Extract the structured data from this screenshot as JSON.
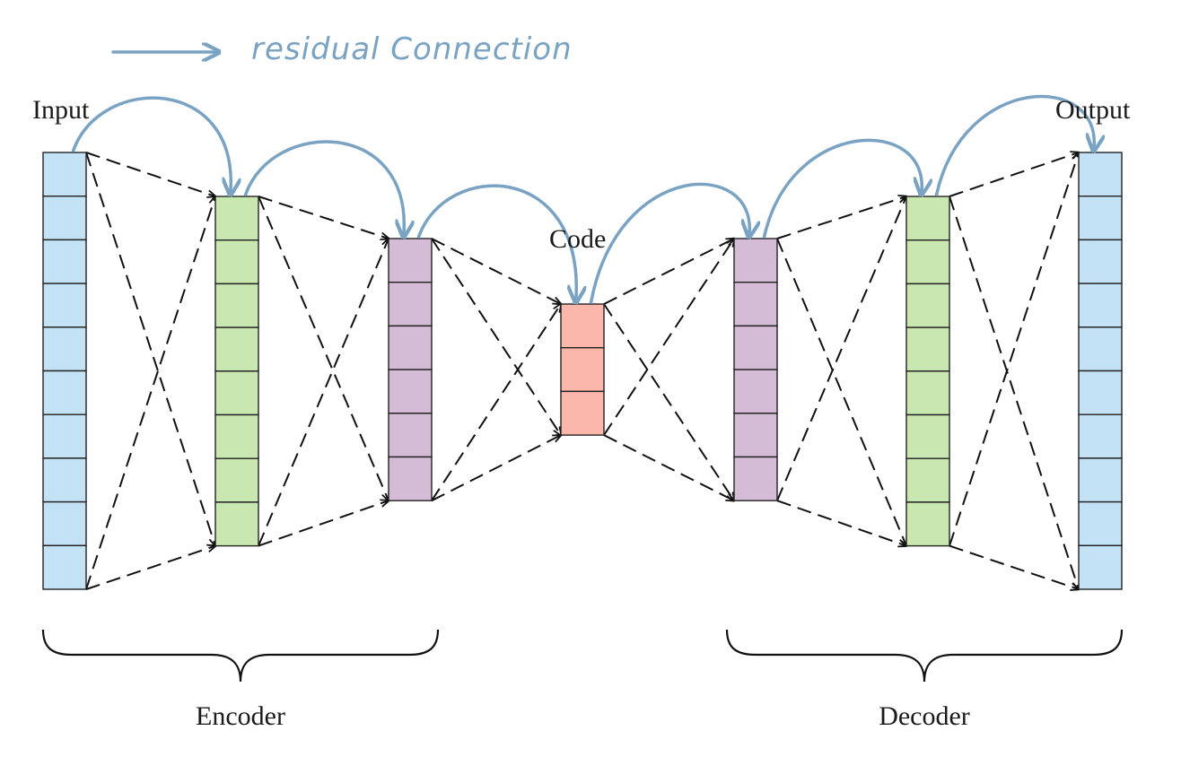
{
  "legend": {
    "text": "residual Connection",
    "color": "#7aa3c3"
  },
  "labels": {
    "input": "Input",
    "output": "Output",
    "code": "Code",
    "encoder": "Encoder",
    "decoder": "Decoder"
  },
  "layers": [
    {
      "name": "input",
      "cells": 10,
      "color": "#c4e2f6"
    },
    {
      "name": "encoder-hidden-1",
      "cells": 8,
      "color": "#c9e7b0"
    },
    {
      "name": "encoder-hidden-2",
      "cells": 6,
      "color": "#d4bcd6"
    },
    {
      "name": "code",
      "cells": 3,
      "color": "#fbb8aa"
    },
    {
      "name": "decoder-hidden-1",
      "cells": 6,
      "color": "#d4bcd6"
    },
    {
      "name": "decoder-hidden-2",
      "cells": 8,
      "color": "#c9e7b0"
    },
    {
      "name": "output",
      "cells": 10,
      "color": "#c4e2f6"
    }
  ],
  "colors": {
    "residual": "#7aa3c3",
    "connection": "#111111"
  }
}
